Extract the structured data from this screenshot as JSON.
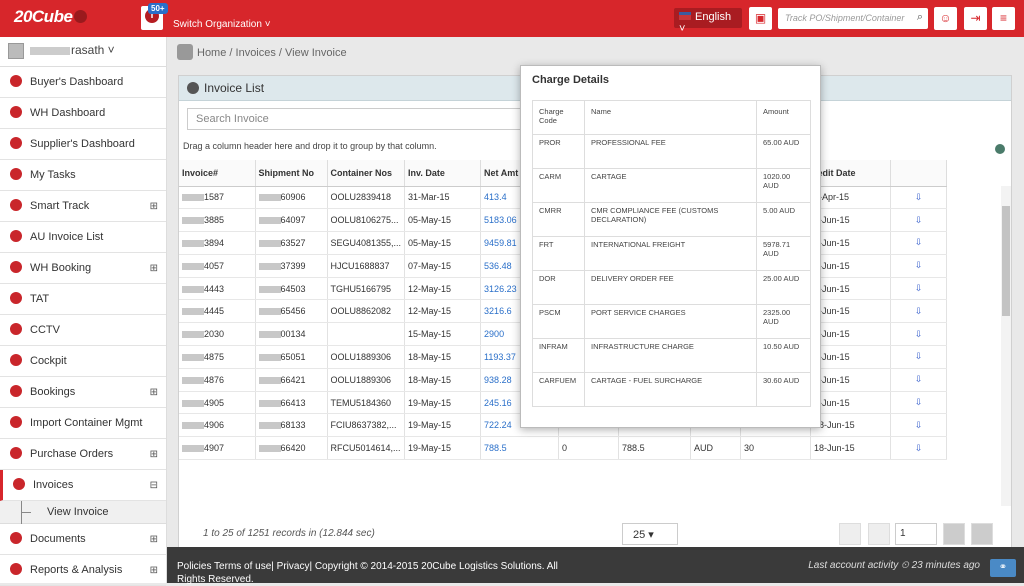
{
  "topbar": {
    "logo": "20Cube",
    "badge": "50+",
    "switch_org": "Switch Organization ˅",
    "language": "English ˅",
    "track_placeholder": "Track PO/Shipment/Container"
  },
  "user": {
    "name": "rasath ˅"
  },
  "sidebar": {
    "items": [
      {
        "label": "Buyer's Dashboard",
        "icon": "pie-chart-icon",
        "expand": ""
      },
      {
        "label": "WH Dashboard",
        "icon": "pie-chart-icon",
        "expand": ""
      },
      {
        "label": "Supplier's Dashboard",
        "icon": "pie-chart-icon",
        "expand": ""
      },
      {
        "label": "My Tasks",
        "icon": "tasks-icon",
        "expand": ""
      },
      {
        "label": "Smart Track",
        "icon": "map-marker-icon",
        "expand": "⊞"
      },
      {
        "label": "AU Invoice List",
        "icon": "invoice-icon",
        "expand": ""
      },
      {
        "label": "WH Booking",
        "icon": "network-icon",
        "expand": "⊞"
      },
      {
        "label": "TAT",
        "icon": "clock-icon",
        "expand": ""
      },
      {
        "label": "CCTV",
        "icon": "camera-icon",
        "expand": ""
      },
      {
        "label": "Cockpit",
        "icon": "cockpit-icon",
        "expand": ""
      },
      {
        "label": "Bookings",
        "icon": "bookings-icon",
        "expand": "⊞"
      },
      {
        "label": "Import Container Mgmt",
        "icon": "container-icon",
        "expand": ""
      },
      {
        "label": "Purchase Orders",
        "icon": "cart-icon",
        "expand": "⊞"
      },
      {
        "label": "Invoices",
        "icon": "invoice-icon",
        "expand": "⊟"
      }
    ],
    "sub_item": "View Invoice",
    "items_after": [
      {
        "label": "Documents",
        "icon": "document-icon",
        "expand": "⊞"
      },
      {
        "label": "Reports & Analysis",
        "icon": "chart-icon",
        "expand": "⊞"
      }
    ]
  },
  "breadcrumb": [
    "Home",
    "Invoices",
    "View Invoice"
  ],
  "panel": {
    "title": "Invoice List",
    "search_placeholder": "Search Invoice",
    "drag_hint": "Drag a column header here and drop it to group by that column."
  },
  "grid": {
    "columns": [
      "Invoice#",
      "Shipment No",
      "Container Nos",
      "Inv. Date",
      "Net Amt",
      "",
      "",
      "",
      "",
      "redit Date",
      ""
    ],
    "rows": [
      {
        "inv": "1587",
        "ship": "60906",
        "cont": "OOLU2839418",
        "date": "31-Mar-15",
        "amt": "413.4",
        "cr": "0-Apr-15"
      },
      {
        "inv": "3885",
        "ship": "64097",
        "cont": "OOLU8106275...",
        "date": "05-May-15",
        "amt": "5183.06",
        "cr": "4-Jun-15"
      },
      {
        "inv": "3894",
        "ship": "63527",
        "cont": "SEGU4081355,...",
        "date": "05-May-15",
        "amt": "9459.81",
        "cr": "4-Jun-15"
      },
      {
        "inv": "4057",
        "ship": "37399",
        "cont": "HJCU1688837",
        "date": "07-May-15",
        "amt": "536.48",
        "cr": "5-Jun-15"
      },
      {
        "inv": "4443",
        "ship": "64503",
        "cont": "TGHU5166795",
        "date": "12-May-15",
        "amt": "3126.23",
        "cr": "1-Jun-15"
      },
      {
        "inv": "4445",
        "ship": "65456",
        "cont": "OOLU8862082",
        "date": "12-May-15",
        "amt": "3216.6",
        "cr": "1-Jun-15"
      },
      {
        "inv": "2030",
        "ship": "00134",
        "cont": "",
        "date": "15-May-15",
        "amt": "2900",
        "cr": "4-Jun-15"
      },
      {
        "inv": "4875",
        "ship": "65051",
        "cont": "OOLU1889306",
        "date": "18-May-15",
        "amt": "1193.37",
        "cr": "7-Jun-15"
      },
      {
        "inv": "4876",
        "ship": "66421",
        "cont": "OOLU1889306",
        "date": "18-May-15",
        "amt": "938.28",
        "cr": "7-Jun-15"
      },
      {
        "inv": "4905",
        "ship": "66413",
        "cont": "TEMU5184360",
        "date": "19-May-15",
        "amt": "245.16",
        "cr": "8-Jun-15"
      },
      {
        "inv": "4906",
        "ship": "68133",
        "cont": "FCIU8637382,...",
        "date": "19-May-15",
        "amt": "722.24",
        "c6": "0",
        "c7": "722.24",
        "c8": "AUD",
        "c9": "30",
        "cr": "18-Jun-15"
      },
      {
        "inv": "4907",
        "ship": "66420",
        "cont": "RFCU5014614,...",
        "date": "19-May-15",
        "amt": "788.5",
        "c6": "0",
        "c7": "788.5",
        "c8": "AUD",
        "c9": "30",
        "cr": "18-Jun-15"
      }
    ]
  },
  "footer_pager": {
    "records": "1 to 25 of 1251 records in (12.844 sec)",
    "page_size": "25 ▾",
    "page": "1"
  },
  "popup": {
    "title": "Charge Details",
    "headers": [
      "Charge Code",
      "Name",
      "Amount"
    ],
    "rows": [
      {
        "code": "PROR",
        "name": "PROFESSIONAL FEE",
        "amount": "65.00 AUD"
      },
      {
        "code": "CARM",
        "name": "CARTAGE",
        "amount": "1020.00 AUD"
      },
      {
        "code": "CMRR",
        "name": "CMR COMPLIANCE FEE (CUSTOMS DECLARATION)",
        "amount": "5.00 AUD"
      },
      {
        "code": "FRT",
        "name": "INTERNATIONAL FREIGHT",
        "amount": "5978.71 AUD"
      },
      {
        "code": "DOR",
        "name": "DELIVERY ORDER FEE",
        "amount": "25.00 AUD"
      },
      {
        "code": "PSCM",
        "name": "PORT SERVICE CHARGES",
        "amount": "2325.00 AUD"
      },
      {
        "code": "INFRAM",
        "name": "INFRASTRUCTURE CHARGE",
        "amount": "10.50 AUD"
      },
      {
        "code": "CARFUEM",
        "name": "CARTAGE - FUEL SURCHARGE",
        "amount": "30.60 AUD"
      }
    ]
  },
  "footer": {
    "links": "Policies Terms of use| Privacy| Copyright © 2014-2015 20Cube Logistics Solutions. All Rights Reserved.",
    "activity": "Last account activity ⏲ 23 minutes ago"
  }
}
